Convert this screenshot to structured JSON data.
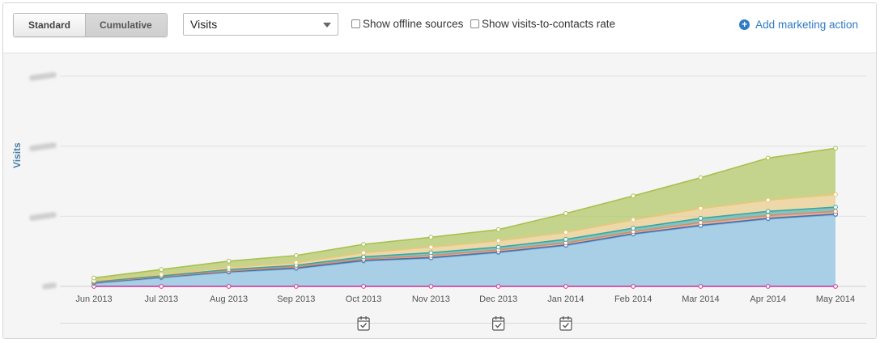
{
  "toolbar": {
    "standard_label": "Standard",
    "cumulative_label": "Cumulative",
    "metric_select_value": "Visits",
    "offline_sources_label": "Show offline sources",
    "visits_rate_label": "Show visits-to-contacts rate",
    "add_action_label": "Add marketing action"
  },
  "chart_data": {
    "type": "area",
    "stacked": true,
    "ylabel": "Visits",
    "categories": [
      "Jun 2013",
      "Jul 2013",
      "Aug 2013",
      "Sep 2013",
      "Oct 2013",
      "Nov 2013",
      "Dec 2013",
      "Jan 2014",
      "Feb 2014",
      "Mar 2014",
      "Apr 2014",
      "May 2014"
    ],
    "ylim": [
      0,
      300
    ],
    "grid": true,
    "series": [
      {
        "color": "#cc3399",
        "values": [
          0,
          0,
          0,
          0,
          0,
          0,
          0,
          0,
          0,
          0,
          0,
          0
        ]
      },
      {
        "color": "#7bb8df",
        "values": [
          4,
          12,
          20,
          25,
          36,
          40,
          48,
          58,
          74,
          86,
          96,
          102
        ]
      },
      {
        "color": "#4a6fa5",
        "values": [
          1,
          1,
          1,
          1,
          1,
          1,
          1,
          1,
          1,
          1,
          1,
          1
        ]
      },
      {
        "color": "#d98a6a",
        "values": [
          1,
          1,
          1,
          2,
          2,
          3,
          3,
          3,
          3,
          4,
          4,
          4
        ]
      },
      {
        "color": "#3aa6a0",
        "values": [
          1,
          1,
          2,
          2,
          3,
          4,
          4,
          5,
          5,
          6,
          6,
          6
        ]
      },
      {
        "color": "#e8c77a",
        "values": [
          1,
          2,
          3,
          4,
          6,
          8,
          9,
          10,
          12,
          14,
          16,
          18
        ]
      },
      {
        "color": "#a8c04e",
        "values": [
          4,
          7,
          9,
          10,
          12,
          14,
          16,
          27,
          34,
          44,
          60,
          66
        ]
      }
    ],
    "markers": [
      "Oct 2013",
      "Dec 2013",
      "Jan 2014"
    ]
  }
}
